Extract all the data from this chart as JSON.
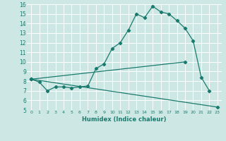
{
  "xlabel": "Humidex (Indice chaleur)",
  "bg_color": "#cde8e4",
  "line_color": "#1a7a6e",
  "grid_color": "#ffffff",
  "xlim": [
    -0.5,
    23.5
  ],
  "ylim": [
    5,
    16
  ],
  "xticks": [
    0,
    1,
    2,
    3,
    4,
    5,
    6,
    7,
    8,
    9,
    10,
    11,
    12,
    13,
    14,
    15,
    16,
    17,
    18,
    19,
    20,
    21,
    22,
    23
  ],
  "yticks": [
    5,
    6,
    7,
    8,
    9,
    10,
    11,
    12,
    13,
    14,
    15,
    16
  ],
  "series": [
    {
      "x": [
        0,
        1,
        2,
        3,
        4,
        5,
        6,
        7,
        8,
        9,
        10,
        11,
        12,
        13,
        14,
        15,
        16,
        17,
        18,
        19,
        20,
        21,
        22
      ],
      "y": [
        8.2,
        7.9,
        7.0,
        7.4,
        7.4,
        7.3,
        7.4,
        7.5,
        9.3,
        9.8,
        11.4,
        12.0,
        13.3,
        15.0,
        14.6,
        15.8,
        15.2,
        15.0,
        14.3,
        13.5,
        12.2,
        8.4,
        7.0
      ]
    },
    {
      "x": [
        0,
        19
      ],
      "y": [
        8.2,
        10.0
      ]
    },
    {
      "x": [
        0,
        23
      ],
      "y": [
        8.2,
        5.3
      ]
    }
  ]
}
